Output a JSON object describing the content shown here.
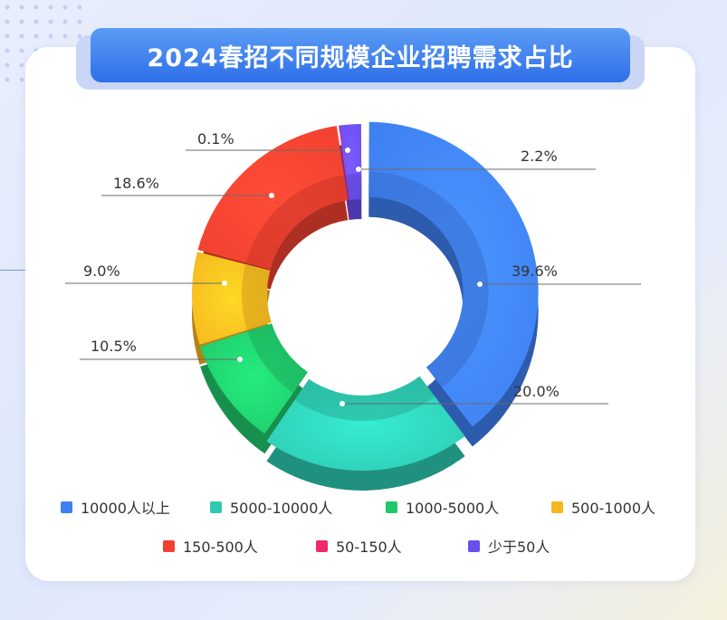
{
  "title": "2024春招不同规模企业招聘需求占比",
  "chart_data": {
    "type": "pie",
    "variant": "donut-3d",
    "title": "2024春招不同规模企业招聘需求占比",
    "legend_position": "bottom",
    "series": [
      {
        "name": "10000人以上",
        "value": 39.6,
        "label": "39.6%",
        "color": "#3f7ff2"
      },
      {
        "name": "5000-10000人",
        "value": 20.0,
        "label": "20.0%",
        "color": "#2ec9b1"
      },
      {
        "name": "1000-5000人",
        "value": 10.5,
        "label": "10.5%",
        "color": "#1fc86a"
      },
      {
        "name": "500-1000人",
        "value": 9.0,
        "label": "9.0%",
        "color": "#f5b71f"
      },
      {
        "name": "150-500人",
        "value": 18.6,
        "label": "18.6%",
        "color": "#f0402f"
      },
      {
        "name": "50-150人",
        "value": 0.1,
        "label": "0.1%",
        "color": "#ee2a6b"
      },
      {
        "name": "少于50人",
        "value": 2.2,
        "label": "2.2%",
        "color": "#6a4ef0"
      }
    ]
  }
}
